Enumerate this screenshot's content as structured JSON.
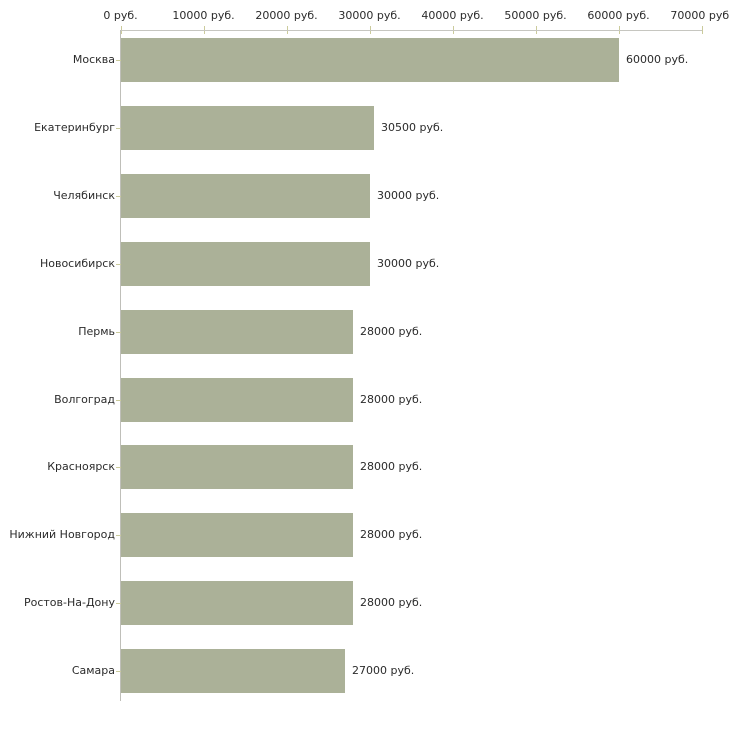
{
  "chart_data": {
    "type": "bar",
    "orientation": "horizontal",
    "title": "",
    "xlabel": "",
    "ylabel": "",
    "unit": "руб.",
    "categories": [
      "Москва",
      "Екатеринбург",
      "Челябинск",
      "Новосибирск",
      "Пермь",
      "Волгоград",
      "Красноярск",
      "Нижний Новгород",
      "Ростов-На-Дону",
      "Самара"
    ],
    "values": [
      60000,
      30500,
      30000,
      30000,
      28000,
      28000,
      28000,
      28000,
      28000,
      27000
    ],
    "value_labels": [
      "60000 руб.",
      "30500 руб.",
      "30000 руб.",
      "30000 руб.",
      "28000 руб.",
      "28000 руб.",
      "28000 руб.",
      "28000 руб.",
      "28000 руб.",
      "27000 руб."
    ],
    "x_axis": {
      "position": "top",
      "min": 0,
      "max": 70000,
      "ticks": [
        0,
        10000,
        20000,
        30000,
        40000,
        50000,
        60000,
        70000
      ],
      "tick_labels": [
        "0 руб.",
        "10000 руб.",
        "20000 руб.",
        "30000 руб.",
        "40000 руб.",
        "50000 руб.",
        "60000 руб.",
        "70000 руб."
      ]
    },
    "layout_hints": {
      "grid": false,
      "legend": false,
      "value_labels_outside_right": true
    },
    "colors": {
      "bar": "#abb198",
      "axis_line": "#c6c6c0",
      "tick_mark": "#cbcb9c",
      "text": "#2b2b2b",
      "background": "#ffffff"
    }
  }
}
